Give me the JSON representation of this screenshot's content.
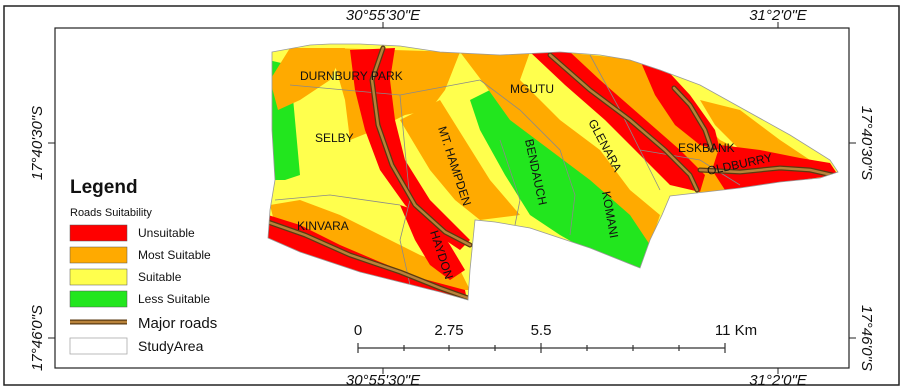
{
  "coordinates": {
    "top_left": "30°55'30\"E",
    "top_right": "31°2'0\"E",
    "bottom_left": "30°55'30\"E",
    "bottom_right": "31°2'0\"E",
    "left_upper": "17°40'30\"S",
    "left_lower": "17°46'0\"S",
    "right_upper": "17°40'30\"S",
    "right_lower": "17°46'0\"S"
  },
  "places": {
    "durnbury_park": "DURNBURY PARK",
    "mgutu": "MGUTU",
    "selby": "SELBY",
    "mt_hampden": "MT. HAMPDEN",
    "bendauch": "BENDAUCH",
    "glenara": "GLENARA",
    "eskbank": "ESKBANK",
    "oldburry": "OLDBURRY",
    "komani": "KOMANI",
    "kinvara": "KINVARA",
    "haydon": "HAYDON"
  },
  "legend": {
    "title": "Legend",
    "subtitle": "Roads Suitability",
    "items": [
      {
        "label": "Unsuitable",
        "color": "#ff0000"
      },
      {
        "label": "Most Suitable",
        "color": "#ffaa00"
      },
      {
        "label": "Suitable",
        "color": "#ffff4d"
      },
      {
        "label": "Less Suitable",
        "color": "#22e61e"
      }
    ],
    "major_roads": "Major roads",
    "road_color": "#8b5a1a",
    "study_area": "StudyArea"
  },
  "scale_bar": {
    "labels": [
      "0",
      "2.75",
      "5.5",
      "11 Km"
    ]
  }
}
